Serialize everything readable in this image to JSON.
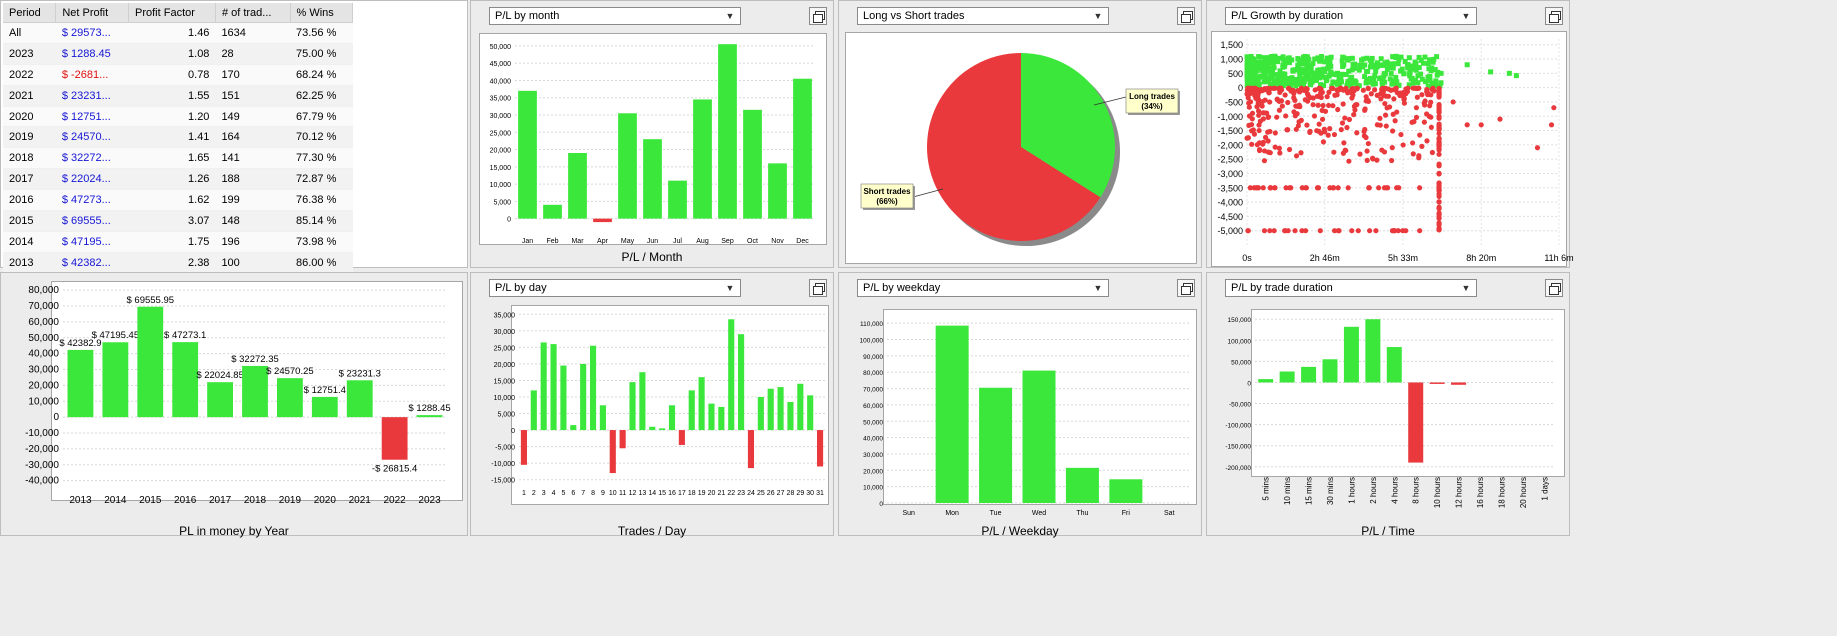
{
  "colors": {
    "positive": "#3ce73c",
    "negative": "#e9393c",
    "link": "#1515d6"
  },
  "table": {
    "headers": [
      "Period",
      "Net Profit",
      "Profit Factor",
      "# of trad...",
      "% Wins"
    ],
    "rows": [
      {
        "period": "All",
        "net": "$ 29573...",
        "pf": "1.46",
        "trades": "1634",
        "wins": "73.56 %",
        "neg": false
      },
      {
        "period": "2023",
        "net": "$ 1288.45",
        "pf": "1.08",
        "trades": "28",
        "wins": "75.00 %",
        "neg": false
      },
      {
        "period": "2022",
        "net": "$ -2681...",
        "pf": "0.78",
        "trades": "170",
        "wins": "68.24 %",
        "neg": true
      },
      {
        "period": "2021",
        "net": "$ 23231...",
        "pf": "1.55",
        "trades": "151",
        "wins": "62.25 %",
        "neg": false
      },
      {
        "period": "2020",
        "net": "$ 12751...",
        "pf": "1.20",
        "trades": "149",
        "wins": "67.79 %",
        "neg": false
      },
      {
        "period": "2019",
        "net": "$ 24570...",
        "pf": "1.41",
        "trades": "164",
        "wins": "70.12 %",
        "neg": false
      },
      {
        "period": "2018",
        "net": "$ 32272...",
        "pf": "1.65",
        "trades": "141",
        "wins": "77.30 %",
        "neg": false
      },
      {
        "period": "2017",
        "net": "$ 22024...",
        "pf": "1.26",
        "trades": "188",
        "wins": "72.87 %",
        "neg": false
      },
      {
        "period": "2016",
        "net": "$ 47273...",
        "pf": "1.62",
        "trades": "199",
        "wins": "76.38 %",
        "neg": false
      },
      {
        "period": "2015",
        "net": "$ 69555...",
        "pf": "3.07",
        "trades": "148",
        "wins": "85.14 %",
        "neg": false
      },
      {
        "period": "2014",
        "net": "$ 47195...",
        "pf": "1.75",
        "trades": "196",
        "wins": "73.98 %",
        "neg": false
      },
      {
        "period": "2013",
        "net": "$ 42382...",
        "pf": "2.38",
        "trades": "100",
        "wins": "86.00 %",
        "neg": false
      }
    ]
  },
  "dropdowns": {
    "month": "P/L by month",
    "longshort": "Long vs Short trades",
    "growth": "P/L Growth by duration",
    "day": "P/L by day",
    "weekday": "P/L by weekday",
    "duration": "P/L by trade duration"
  },
  "chart_data": [
    {
      "id": "monthly",
      "type": "bar",
      "xlabel": "P/L / Month",
      "categories": [
        "Jan",
        "Feb",
        "Mar",
        "Apr",
        "May",
        "Jun",
        "Jul",
        "Aug",
        "Sep",
        "Oct",
        "Nov",
        "Dec"
      ],
      "values": [
        37000,
        4000,
        19000,
        -1000,
        30500,
        23000,
        11000,
        34500,
        50500,
        31500,
        16000,
        40500
      ],
      "ylim": [
        -3000,
        52000
      ],
      "yticks": [
        0,
        5000,
        10000,
        15000,
        20000,
        25000,
        30000,
        35000,
        40000,
        45000,
        50000
      ],
      "yticklabels": [
        "0",
        "5,000",
        "10,000",
        "15,000",
        "20,000",
        "25,000",
        "30,000",
        "35,000",
        "40,000",
        "45,000",
        "50,000"
      ]
    },
    {
      "id": "longshort",
      "type": "pie",
      "slices": [
        {
          "label": "Long trades",
          "pct_label": "(34%)",
          "value": 34
        },
        {
          "label": "Short trades",
          "pct_label": "(66%)",
          "value": 66
        }
      ]
    },
    {
      "id": "growth",
      "type": "scatter",
      "ylim": [
        -5500,
        1700
      ],
      "yticks": [
        1500,
        1000,
        500,
        0,
        -500,
        -1000,
        -1500,
        -2000,
        -2500,
        -3000,
        -3500,
        -4000,
        -4500,
        -5000
      ],
      "yticklabels": [
        "1,500",
        "1,000",
        "500",
        "0",
        "-500",
        "-1,000",
        "-1,500",
        "-2,000",
        "-2,500",
        "-3,000",
        "-3,500",
        "-4,000",
        "-4,500",
        "-5,000"
      ],
      "xticklabels": [
        "0s",
        "2h 46m",
        "5h 33m",
        "8h 20m",
        "11h 6m"
      ],
      "xlim": [
        0,
        666
      ],
      "xticks": [
        0,
        166,
        333,
        500,
        666
      ]
    },
    {
      "id": "yearly",
      "type": "bar",
      "xlabel": "PL in money by Year",
      "categories": [
        "2013",
        "2014",
        "2015",
        "2016",
        "2017",
        "2018",
        "2019",
        "2020",
        "2021",
        "2022",
        "2023"
      ],
      "values": [
        42382.9,
        47195.45,
        69555.95,
        47273.1,
        22024.85,
        32272.35,
        24570.25,
        12751.4,
        23231.3,
        -26815.4,
        1288.45
      ],
      "labels": [
        "$ 42382.9",
        "$ 47195.45",
        "$ 69555.95",
        "$ 47273.1",
        "$ 22024.85",
        "$ 32272.35",
        "$ 24570.25",
        "$ 12751.4",
        "$ 23231.3",
        "-$ 26815.4",
        "$ 1288.45"
      ],
      "ylim": [
        -44000,
        82000
      ],
      "yticks": [
        80000,
        70000,
        60000,
        50000,
        40000,
        30000,
        20000,
        10000,
        0,
        -10000,
        -20000,
        -30000,
        -40000
      ],
      "yticklabels": [
        "80,000",
        "70,000",
        "60,000",
        "50,000",
        "40,000",
        "30,000",
        "20,000",
        "10,000",
        "0",
        "-10,000",
        "-20,000",
        "-30,000",
        "-40,000"
      ]
    },
    {
      "id": "daily",
      "type": "bar",
      "xlabel": "Trades / Day",
      "categories": [
        "1",
        "2",
        "3",
        "4",
        "5",
        "6",
        "7",
        "8",
        "9",
        "10",
        "11",
        "12",
        "13",
        "14",
        "15",
        "16",
        "17",
        "18",
        "19",
        "20",
        "21",
        "22",
        "23",
        "24",
        "25",
        "26",
        "27",
        "28",
        "29",
        "30",
        "31"
      ],
      "values": [
        -10500,
        12000,
        26500,
        26000,
        19500,
        1500,
        20000,
        25500,
        7500,
        -13000,
        -5500,
        14500,
        17500,
        1000,
        500,
        7500,
        -4500,
        12000,
        16000,
        8000,
        7000,
        33500,
        29000,
        -11500,
        10000,
        12500,
        13000,
        8500,
        14000,
        10500,
        -11000
      ],
      "ylim": [
        -16000,
        36000
      ],
      "yticks": [
        35000,
        30000,
        25000,
        20000,
        15000,
        10000,
        5000,
        0,
        -5000,
        -10000,
        -15000
      ],
      "yticklabels": [
        "35,000",
        "30,000",
        "25,000",
        "20,000",
        "15,000",
        "10,000",
        "5,000",
        "0",
        "-5,000",
        "-10,000",
        "-15,000"
      ]
    },
    {
      "id": "weekday",
      "type": "bar",
      "xlabel": "P/L / Weekday",
      "categories": [
        "Sun",
        "Mon",
        "Tue",
        "Wed",
        "Thu",
        "Fri",
        "Sat"
      ],
      "values": [
        0,
        108500,
        70500,
        81000,
        21500,
        14500,
        0
      ],
      "ylim": [
        0,
        115000
      ],
      "yticks": [
        110000,
        100000,
        90000,
        80000,
        70000,
        60000,
        50000,
        40000,
        30000,
        20000,
        10000,
        0
      ],
      "yticklabels": [
        "110,000",
        "100,000",
        "90,000",
        "80,000",
        "70,000",
        "60,000",
        "50,000",
        "40,000",
        "30,000",
        "20,000",
        "10,000",
        "0"
      ]
    },
    {
      "id": "duration",
      "type": "bar",
      "xlabel": "P/L / Time",
      "categories": [
        "5 mins",
        "10 mins",
        "15 mins",
        "30 mins",
        "1 hours",
        "2 hours",
        "4 hours",
        "8 hours",
        "10 hours",
        "12 hours",
        "16 hours",
        "18 hours",
        "20 hours",
        "1 days"
      ],
      "values": [
        8000,
        26000,
        37000,
        55000,
        132000,
        150000,
        84000,
        -190000,
        -3500,
        -5500,
        0,
        0,
        0,
        0
      ],
      "ylim": [
        -210000,
        160000
      ],
      "yticks": [
        150000,
        100000,
        50000,
        0,
        -50000,
        -100000,
        -150000,
        -200000
      ],
      "yticklabels": [
        "150,000",
        "100,000",
        "50,000",
        "0",
        "-50,000",
        "-100,000",
        "-150,000",
        "-200,000"
      ]
    }
  ]
}
